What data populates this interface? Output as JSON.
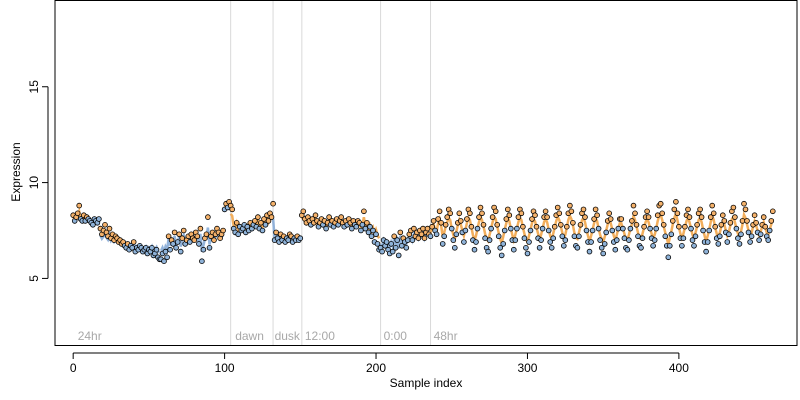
{
  "chart_data": {
    "type": "scatter",
    "title": "",
    "xlabel": "Sample index",
    "ylabel": "Expression",
    "xlim": [
      -12,
      478
    ],
    "ylim": [
      1.5,
      19.5
    ],
    "x_ticks": [
      0,
      100,
      200,
      300,
      400
    ],
    "y_ticks": [
      5,
      10,
      15
    ],
    "grid": false,
    "condition_boundaries": [
      104,
      132,
      151,
      203,
      236
    ],
    "condition_labels": [
      {
        "label": "24hr",
        "x": 3
      },
      {
        "label": "dawn",
        "x": 107
      },
      {
        "label": "dusk",
        "x": 133
      },
      {
        "label": "12:00",
        "x": 153
      },
      {
        "label": "0:00",
        "x": 205
      },
      {
        "label": "48hr",
        "x": 238
      }
    ],
    "label_y": 2.0,
    "colors": {
      "point_above": "#f5b26b",
      "point_below": "#8fb3d9",
      "point_edge": "#000000",
      "fit_above": "#f0a040",
      "fit_below": "#7fa6d4",
      "boundary": "#d9d9d9",
      "axis": "#000000"
    },
    "series": [
      {
        "name": "",
        "segments": [
          {
            "x0": 0,
            "x1": 18,
            "y": [
              8.3,
              8.0,
              8.2,
              8.4,
              8.8,
              8.1,
              8.0,
              8.3,
              8.0,
              8.2,
              8.1,
              8.0,
              7.9,
              7.8,
              8.1,
              8.0,
              7.9,
              8.1
            ]
          },
          {
            "x0": 18,
            "x1": 58,
            "y": [
              7.6,
              7.3,
              7.5,
              7.8,
              7.4,
              7.2,
              7.6,
              7.1,
              7.3,
              7.0,
              7.2,
              7.1,
              6.9,
              7.0,
              6.8,
              6.9,
              6.7,
              6.6,
              6.8,
              6.5,
              6.7,
              6.6,
              6.9,
              6.4,
              6.6,
              6.5,
              6.7,
              6.6,
              6.4,
              6.5,
              6.6,
              6.3,
              6.5,
              6.4,
              6.6,
              6.2,
              6.3,
              6.5,
              6.1,
              6.0
            ]
          },
          {
            "x0": 58,
            "x1": 100,
            "y": [
              6.0,
              6.3,
              5.9,
              6.4,
              6.1,
              7.2,
              6.5,
              7.0,
              6.8,
              7.4,
              6.6,
              6.9,
              7.3,
              6.4,
              7.1,
              7.5,
              6.8,
              7.0,
              7.2,
              6.9,
              7.3,
              7.1,
              7.0,
              7.4,
              7.2,
              6.8,
              7.6,
              5.9,
              6.5,
              7.1,
              7.3,
              8.2,
              6.6,
              7.2,
              7.4,
              7.0,
              7.3,
              7.6,
              7.4,
              7.1,
              7.3,
              7.5
            ]
          },
          {
            "x0": 100,
            "x1": 104,
            "y": [
              8.6,
              8.9,
              8.7,
              9.0
            ]
          },
          {
            "x0": 104,
            "x1": 132,
            "y": [
              8.8,
              8.6,
              7.6,
              7.4,
              7.9,
              7.3,
              7.7,
              7.5,
              7.6,
              7.8,
              7.4,
              7.7,
              7.5,
              7.9,
              7.6,
              7.8,
              8.0,
              7.7,
              8.2,
              7.6,
              7.9,
              7.5,
              8.1,
              7.8,
              8.3,
              8.0,
              8.4,
              8.2
            ]
          },
          {
            "x0": 132,
            "x1": 151,
            "y": [
              8.9,
              7.0,
              7.4,
              7.1,
              6.9,
              7.3,
              7.0,
              7.2,
              6.9,
              7.1,
              7.0,
              7.3,
              7.2,
              6.9,
              7.1,
              7.0,
              7.2,
              7.0,
              7.1
            ]
          },
          {
            "x0": 151,
            "x1": 203,
            "y": [
              8.3,
              8.5,
              8.1,
              7.9,
              8.2,
              8.0,
              7.8,
              8.1,
              7.9,
              8.3,
              8.0,
              7.7,
              7.9,
              8.1,
              7.8,
              8.0,
              7.6,
              7.9,
              8.2,
              7.8,
              8.0,
              7.7,
              7.9,
              8.1,
              7.8,
              8.0,
              8.2,
              7.9,
              7.7,
              8.0,
              7.8,
              8.1,
              7.9,
              7.6,
              8.0,
              7.8,
              7.7,
              8.0,
              7.9,
              7.5,
              7.8,
              8.5,
              7.6,
              7.9,
              7.4,
              7.7,
              7.2,
              7.5,
              6.9,
              7.3,
              6.8,
              6.5
            ]
          },
          {
            "x0": 203,
            "x1": 236,
            "y": [
              6.6,
              6.4,
              7.0,
              6.7,
              6.9,
              6.5,
              6.3,
              6.8,
              6.4,
              7.2,
              6.6,
              7.0,
              6.2,
              7.4,
              6.7,
              7.1,
              6.9,
              6.6,
              7.0,
              7.3,
              7.5,
              7.0,
              7.6,
              7.2,
              7.4,
              7.1,
              7.5,
              7.3,
              7.6,
              7.1,
              7.4,
              7.6,
              7.3
            ]
          },
          {
            "x0": 236,
            "x1": 463,
            "y": [
              7.2,
              7.7,
              8.0,
              7.5,
              7.3,
              8.1,
              8.5,
              7.9,
              6.8,
              7.2,
              7.8,
              8.2,
              8.6,
              8.4,
              7.6,
              7.0,
              6.6,
              7.3,
              7.9,
              8.4,
              8.0,
              7.4,
              6.9,
              7.5,
              8.1,
              8.6,
              8.4,
              7.7,
              7.0,
              6.5,
              6.9,
              7.6,
              8.2,
              8.7,
              8.4,
              7.8,
              7.1,
              6.6,
              6.4,
              7.0,
              7.6,
              8.2,
              8.7,
              8.5,
              7.8,
              7.2,
              6.6,
              6.2,
              6.8,
              7.5,
              8.1,
              8.6,
              8.3,
              7.6,
              7.0,
              6.5,
              7.0,
              7.6,
              8.2,
              8.6,
              8.4,
              7.7,
              7.1,
              6.6,
              6.3,
              6.9,
              7.5,
              8.1,
              8.5,
              8.3,
              7.7,
              7.1,
              6.6,
              7.0,
              7.6,
              8.2,
              8.5,
              8.2,
              7.5,
              6.9,
              6.6,
              7.1,
              7.7,
              8.3,
              8.7,
              8.4,
              7.8,
              7.2,
              6.7,
              7.0,
              7.7,
              8.4,
              8.8,
              8.5,
              7.9,
              7.2,
              6.7,
              6.6,
              7.2,
              7.8,
              8.4,
              8.6,
              8.2,
              7.5,
              6.9,
              6.4,
              6.9,
              7.5,
              8.1,
              8.6,
              8.3,
              7.6,
              7.0,
              6.6,
              6.3,
              6.8,
              7.4,
              8.0,
              8.4,
              8.1,
              7.5,
              6.9,
              6.5,
              7.0,
              7.6,
              8.1,
              8.1,
              7.6,
              7.1,
              6.6,
              6.5,
              7.0,
              7.6,
              8.0,
              8.8,
              8.4,
              7.8,
              7.2,
              6.7,
              6.6,
              7.1,
              7.7,
              8.2,
              8.5,
              8.2,
              7.6,
              7.1,
              6.7,
              7.0,
              7.6,
              8.3,
              8.8,
              8.9,
              8.4,
              7.8,
              7.2,
              6.7,
              6.1,
              6.7,
              7.3,
              8.0,
              8.6,
              9.0,
              8.4,
              7.7,
              7.1,
              6.7,
              7.1,
              7.7,
              8.3,
              8.6,
              8.2,
              7.6,
              7.0,
              6.7,
              7.2,
              7.8,
              8.4,
              8.6,
              8.2,
              7.5,
              6.9,
              6.4,
              6.9,
              7.5,
              8.2,
              8.8,
              8.4,
              7.7,
              7.1,
              6.8,
              7.2,
              7.8,
              8.3,
              8.0,
              7.4,
              6.9,
              7.3,
              7.9,
              8.5,
              8.7,
              8.2,
              7.6,
              7.1,
              6.8,
              7.3,
              8.0,
              8.9,
              8.6,
              8.0,
              7.4,
              6.9,
              7.2,
              7.8,
              8.3,
              7.9,
              7.4,
              7.0,
              7.3,
              7.8,
              8.2,
              7.7,
              7.2,
              7.0,
              7.5,
              8.0,
              8.5
            ]
          }
        ]
      }
    ]
  }
}
